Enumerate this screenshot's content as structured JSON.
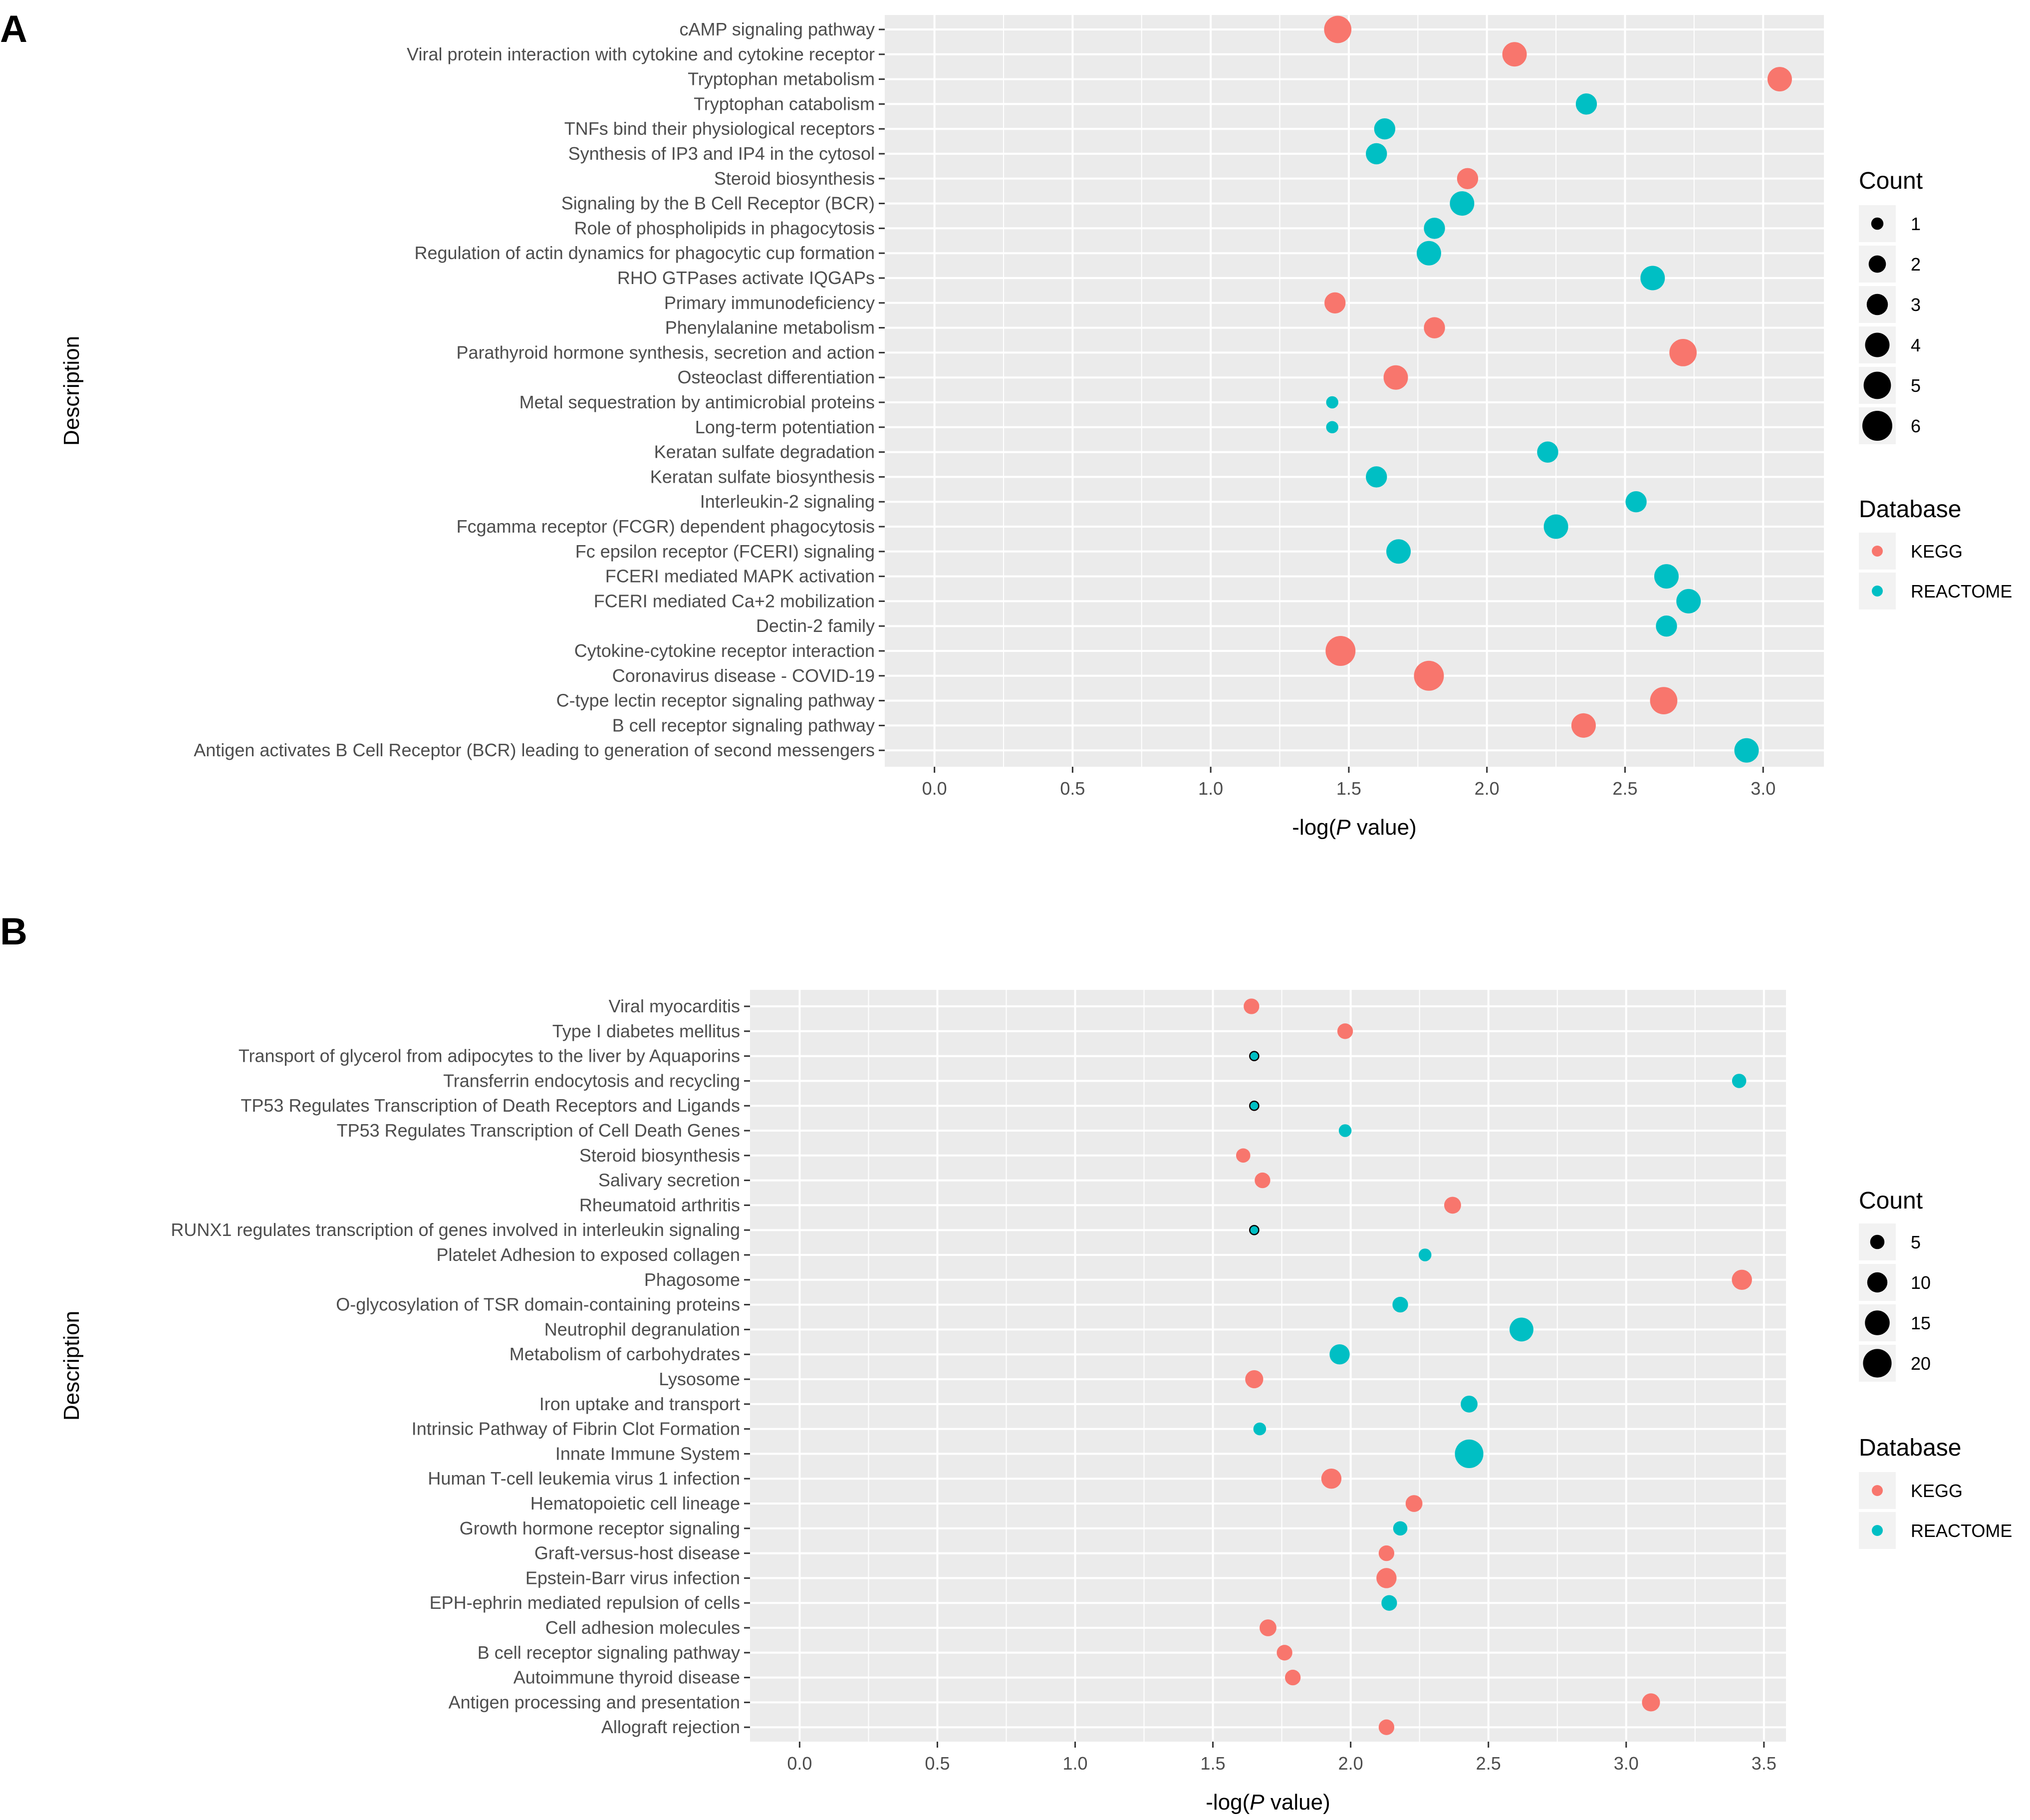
{
  "colors": {
    "kegg": "#F8766D",
    "reactome": "#00BFC4",
    "panel_bg": "#EBEBEB",
    "grid": "#FFFFFF",
    "tick": "#333333"
  },
  "chart_data": [
    {
      "type": "scatter",
      "panel_label": "A",
      "xlabel": {
        "pre": "-log(",
        "italic": "P",
        "post": " value)"
      },
      "ylabel": "Description",
      "xlim": [
        -0.18,
        3.22
      ],
      "xticks": [
        0.0,
        0.5,
        1.0,
        1.5,
        2.0,
        2.5,
        3.0
      ],
      "xtick_labels": [
        "0.0",
        "0.5",
        "1.0",
        "1.5",
        "2.0",
        "2.5",
        "3.0"
      ],
      "size_legend": {
        "title": "Count",
        "values": [
          1,
          2,
          3,
          4,
          5,
          6
        ],
        "labels": [
          "1",
          "2",
          "3",
          "4",
          "5",
          "6"
        ],
        "max": 6
      },
      "color_legend": {
        "title": "Database",
        "labels": [
          "KEGG",
          "REACTOME"
        ]
      },
      "categories": [
        "cAMP signaling pathway",
        "Viral protein interaction with cytokine and cytokine receptor",
        "Tryptophan metabolism",
        "Tryptophan catabolism",
        "TNFs bind their physiological receptors",
        "Synthesis of IP3 and IP4 in the cytosol",
        "Steroid biosynthesis",
        "Signaling by the B Cell Receptor (BCR)",
        "Role of phospholipids in phagocytosis",
        "Regulation of actin dynamics for phagocytic cup formation",
        "RHO GTPases activate IQGAPs",
        "Primary immunodeficiency",
        "Phenylalanine metabolism",
        "Parathyroid hormone synthesis, secretion and action",
        "Osteoclast differentiation",
        "Metal sequestration by antimicrobial proteins",
        "Long-term potentiation",
        "Keratan sulfate degradation",
        "Keratan sulfate biosynthesis",
        "Interleukin-2 signaling",
        "Fcgamma receptor (FCGR) dependent phagocytosis",
        "Fc epsilon receptor (FCERI) signaling",
        "FCERI mediated MAPK activation",
        "FCERI mediated Ca+2 mobilization",
        "Dectin-2 family",
        "Cytokine-cytokine receptor interaction",
        "Coronavirus disease - COVID-19",
        "C-type lectin receptor signaling pathway",
        "B cell receptor signaling pathway",
        "Antigen activates B Cell Receptor (BCR) leading to generation of second messengers"
      ],
      "x": [
        1.46,
        2.1,
        3.06,
        2.36,
        1.63,
        1.6,
        1.93,
        1.91,
        1.81,
        1.79,
        2.6,
        1.45,
        1.81,
        2.71,
        1.67,
        1.44,
        1.44,
        2.22,
        1.6,
        2.54,
        2.25,
        1.68,
        2.65,
        2.73,
        2.65,
        1.47,
        1.79,
        2.64,
        2.35,
        2.94
      ],
      "count": [
        5,
        4,
        4,
        3,
        3,
        3,
        3,
        4,
        3,
        4,
        4,
        3,
        3,
        5,
        4,
        1,
        1,
        3,
        3,
        3,
        4,
        4,
        4,
        4,
        3,
        6,
        6,
        5,
        4,
        4
      ],
      "database": [
        "KEGG",
        "KEGG",
        "KEGG",
        "REACTOME",
        "REACTOME",
        "REACTOME",
        "KEGG",
        "REACTOME",
        "REACTOME",
        "REACTOME",
        "REACTOME",
        "KEGG",
        "KEGG",
        "KEGG",
        "KEGG",
        "REACTOME",
        "REACTOME",
        "REACTOME",
        "REACTOME",
        "REACTOME",
        "REACTOME",
        "REACTOME",
        "REACTOME",
        "REACTOME",
        "REACTOME",
        "KEGG",
        "KEGG",
        "KEGG",
        "KEGG",
        "REACTOME"
      ]
    },
    {
      "type": "scatter",
      "panel_label": "B",
      "xlabel": {
        "pre": "-log(",
        "italic": "P",
        "post": " value)"
      },
      "ylabel": "Description",
      "xlim": [
        -0.18,
        3.58
      ],
      "xticks": [
        0.0,
        0.5,
        1.0,
        1.5,
        2.0,
        2.5,
        3.0,
        3.5
      ],
      "xtick_labels": [
        "0.0",
        "0.5",
        "1.0",
        "1.5",
        "2.0",
        "2.5",
        "3.0",
        "3.5"
      ],
      "size_legend": {
        "title": "Count",
        "values": [
          5,
          10,
          15,
          20
        ],
        "labels": [
          "5",
          "10",
          "15",
          "20"
        ],
        "max": 22
      },
      "color_legend": {
        "title": "Database",
        "labels": [
          "KEGG",
          "REACTOME"
        ]
      },
      "categories": [
        "Viral myocarditis",
        "Type I diabetes mellitus",
        "Transport of glycerol from adipocytes to the liver by Aquaporins",
        "Transferrin endocytosis and recycling",
        "TP53 Regulates Transcription of Death Receptors and Ligands",
        "TP53 Regulates Transcription of Cell Death Genes",
        "Steroid biosynthesis",
        "Salivary secretion",
        "Rheumatoid arthritis",
        "RUNX1 regulates transcription of genes involved in interleukin signaling",
        "Platelet Adhesion to exposed collagen",
        "Phagosome",
        "O-glycosylation of TSR domain-containing proteins",
        "Neutrophil degranulation",
        "Metabolism of carbohydrates",
        "Lysosome",
        "Iron uptake and transport",
        "Intrinsic Pathway of Fibrin Clot Formation",
        "Innate Immune System",
        "Human T-cell leukemia virus 1 infection",
        "Hematopoietic cell lineage",
        "Growth hormone receptor signaling",
        "Graft-versus-host disease",
        "Epstein-Barr virus infection",
        "EPH-ephrin mediated repulsion of cells",
        "Cell adhesion molecules",
        "B cell receptor signaling pathway",
        "Autoimmune thyroid disease",
        "Antigen processing and presentation",
        "Allograft rejection"
      ],
      "x": [
        1.64,
        1.98,
        1.65,
        3.41,
        1.65,
        1.98,
        1.61,
        1.68,
        2.37,
        1.65,
        2.27,
        3.42,
        2.18,
        2.62,
        1.96,
        1.65,
        2.43,
        1.67,
        2.43,
        1.93,
        2.23,
        2.18,
        2.13,
        2.13,
        2.14,
        1.7,
        1.76,
        1.79,
        3.09,
        2.13
      ],
      "count": [
        6,
        6,
        2,
        5,
        2,
        4,
        5,
        6,
        7,
        2,
        4,
        10,
        6,
        14,
        10,
        8,
        7,
        4,
        20,
        10,
        7,
        5,
        6,
        10,
        6,
        7,
        6,
        6,
        8,
        6
      ],
      "database": [
        "KEGG",
        "KEGG",
        "REACTOME",
        "REACTOME",
        "REACTOME",
        "REACTOME",
        "KEGG",
        "KEGG",
        "KEGG",
        "REACTOME",
        "REACTOME",
        "KEGG",
        "REACTOME",
        "REACTOME",
        "REACTOME",
        "KEGG",
        "REACTOME",
        "REACTOME",
        "REACTOME",
        "KEGG",
        "KEGG",
        "REACTOME",
        "KEGG",
        "KEGG",
        "REACTOME",
        "KEGG",
        "KEGG",
        "KEGG",
        "KEGG",
        "KEGG"
      ]
    }
  ]
}
